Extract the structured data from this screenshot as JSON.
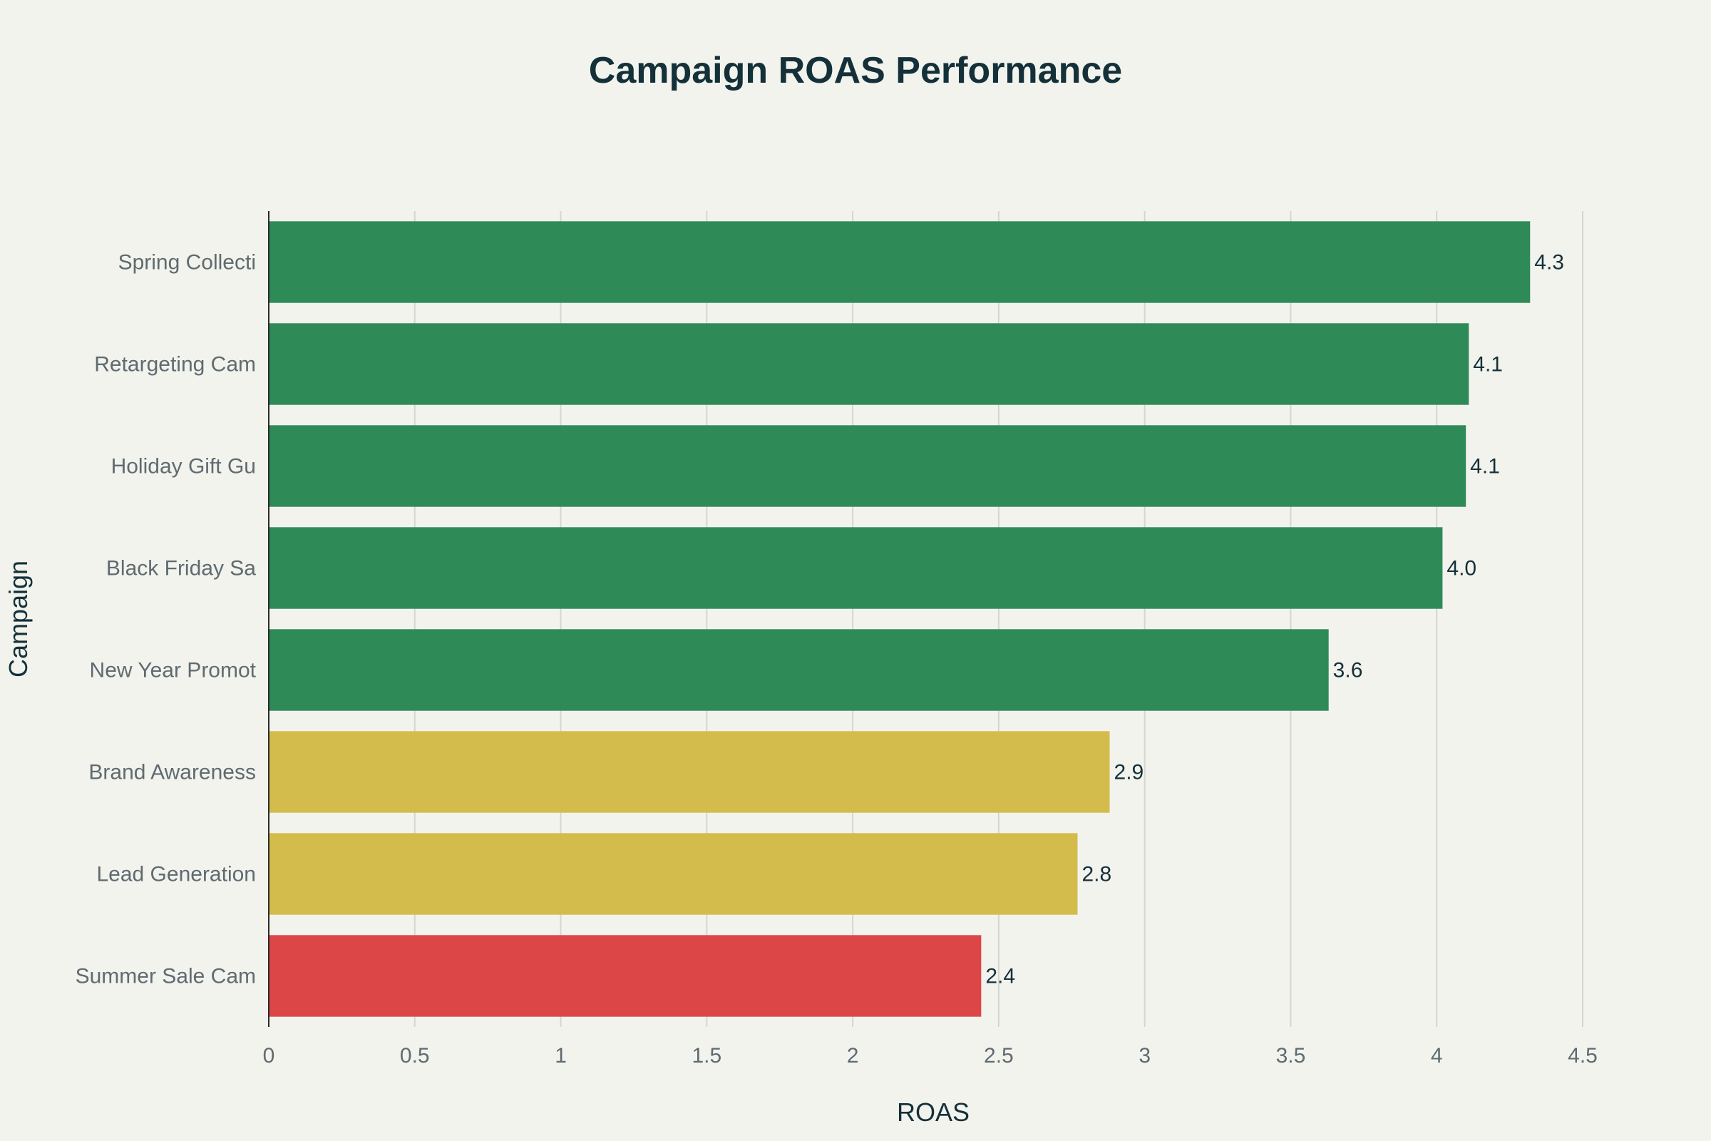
{
  "chart_data": {
    "type": "bar",
    "orientation": "horizontal",
    "title": "Campaign ROAS Performance",
    "xlabel": "ROAS",
    "ylabel": "Campaign",
    "xlim": [
      0,
      4.5
    ],
    "x_ticks": [
      "0",
      "0.5",
      "1",
      "1.5",
      "2",
      "2.5",
      "3",
      "3.5",
      "4",
      "4.5"
    ],
    "x_tick_values": [
      0,
      0.5,
      1,
      1.5,
      2,
      2.5,
      3,
      3.5,
      4,
      4.5
    ],
    "grid": true,
    "legend": "none",
    "categories": [
      "Spring Collecti",
      "Retargeting Cam",
      "Holiday Gift Gu",
      "Black Friday Sa",
      "New Year Promot",
      "Brand Awareness",
      "Lead Generation",
      "Summer Sale Cam"
    ],
    "values": [
      4.32,
      4.11,
      4.1,
      4.02,
      3.63,
      2.88,
      2.77,
      2.44
    ],
    "value_labels": [
      "4.3",
      "4.1",
      "4.1",
      "4.0",
      "3.6",
      "2.9",
      "2.8",
      "2.4"
    ],
    "bar_colors": [
      "#2E8B57",
      "#2E8B57",
      "#2E8B57",
      "#2E8B57",
      "#2E8B57",
      "#D4BC4C",
      "#D4BC4C",
      "#DC4646"
    ]
  },
  "colors": {
    "background": "#F3F3EE",
    "high": "#2E8B57",
    "medium": "#D4BC4C",
    "low": "#DC4646",
    "text_dark": "#14313A",
    "text_muted": "#5F6B70"
  }
}
